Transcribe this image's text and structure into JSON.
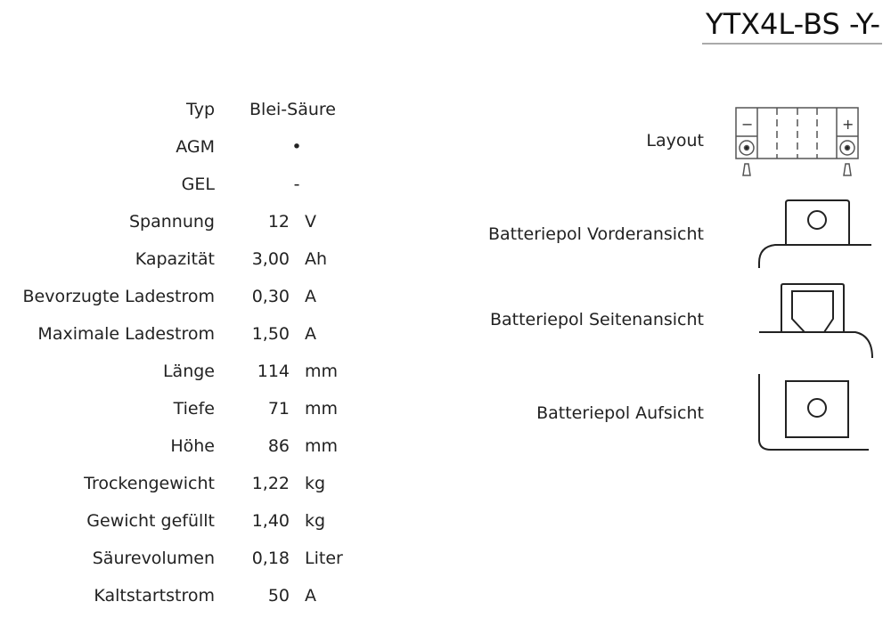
{
  "title": "YTX4L-BS -Y-",
  "specs": [
    {
      "label": "Typ",
      "text": "Blei-Säure"
    },
    {
      "label": "AGM",
      "symbol": "•"
    },
    {
      "label": "GEL",
      "symbol": "-"
    },
    {
      "label": "Spannung",
      "value": "12",
      "unit": "V"
    },
    {
      "label": "Kapazität",
      "value": "3,00",
      "unit": "Ah"
    },
    {
      "label": "Bevorzugte Ladestrom",
      "value": "0,30",
      "unit": "A"
    },
    {
      "label": "Maximale Ladestrom",
      "value": "1,50",
      "unit": "A"
    },
    {
      "label": "Länge",
      "value": "114",
      "unit": "mm"
    },
    {
      "label": "Tiefe",
      "value": "71",
      "unit": "mm"
    },
    {
      "label": "Höhe",
      "value": "86",
      "unit": "mm"
    },
    {
      "label": "Trockengewicht",
      "value": "1,22",
      "unit": "kg"
    },
    {
      "label": "Gewicht gefüllt",
      "value": "1,40",
      "unit": "kg"
    },
    {
      "label": "Säurevolumen",
      "value": "0,18",
      "unit": "Liter"
    },
    {
      "label": "Kaltstartstrom",
      "value": "50",
      "unit": "A"
    }
  ],
  "diagrams": {
    "layout": "Layout",
    "front": "Batteriepol Vorderansicht",
    "side": "Batteriepol Seitenansicht",
    "top": "Batteriepol Aufsicht",
    "minus": "−",
    "plus": "+"
  }
}
